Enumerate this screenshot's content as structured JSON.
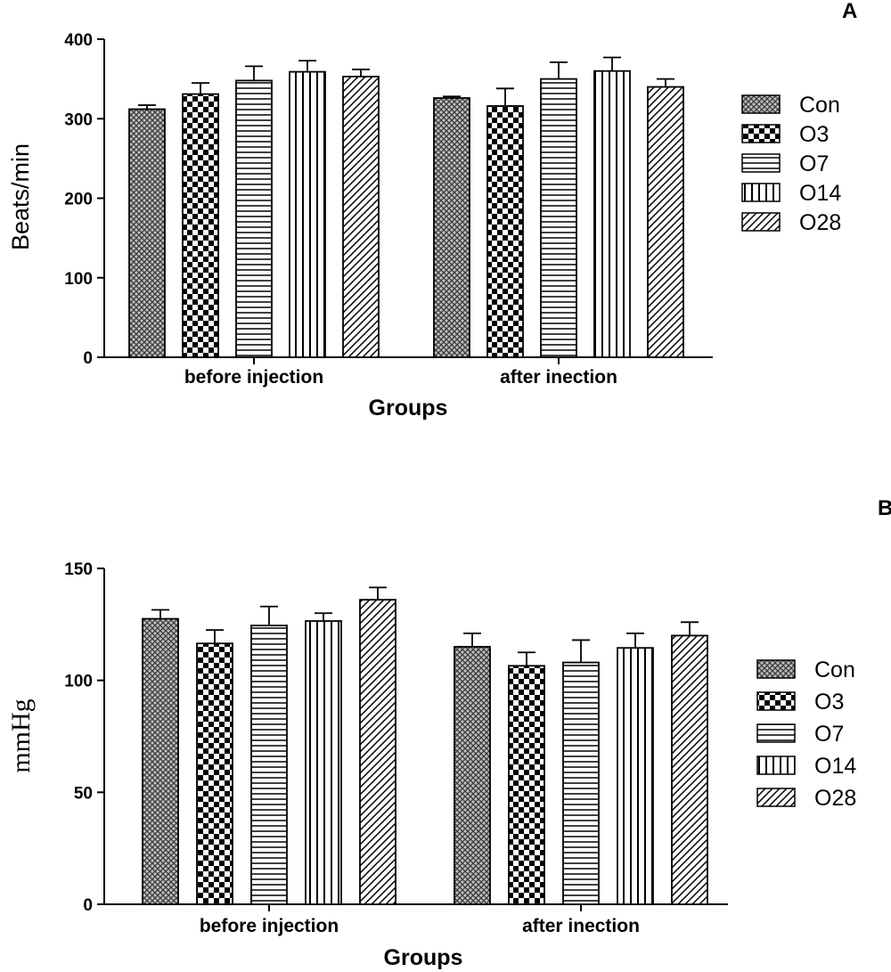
{
  "chart_data": [
    {
      "panel": "A",
      "type": "bar",
      "xlabel": "Groups",
      "ylabel": "Beats/min",
      "ylim": [
        0,
        400
      ],
      "yticks": [
        0,
        100,
        200,
        300,
        400
      ],
      "categories": [
        "before injection",
        "after inection"
      ],
      "legend_position": "right",
      "series": [
        {
          "name": "Con",
          "pattern": "crosshatch",
          "values": [
            312,
            326
          ],
          "errors": [
            5,
            2
          ]
        },
        {
          "name": "O3",
          "pattern": "checker",
          "values": [
            331,
            316
          ],
          "errors": [
            14,
            22
          ]
        },
        {
          "name": "O7",
          "pattern": "horizontal",
          "values": [
            348,
            350
          ],
          "errors": [
            18,
            21
          ]
        },
        {
          "name": "O14",
          "pattern": "vertical",
          "values": [
            359,
            360
          ],
          "errors": [
            14,
            17
          ]
        },
        {
          "name": "O28",
          "pattern": "diagonal",
          "values": [
            353,
            340
          ],
          "errors": [
            9,
            10
          ]
        }
      ]
    },
    {
      "panel": "B",
      "type": "bar",
      "xlabel": "Groups",
      "ylabel": "mmHg",
      "ylim": [
        0,
        150
      ],
      "yticks": [
        0,
        50,
        100,
        150
      ],
      "categories": [
        "before injection",
        "after inection"
      ],
      "legend_position": "right",
      "series": [
        {
          "name": "Con",
          "pattern": "crosshatch",
          "values": [
            127.5,
            115
          ],
          "errors": [
            4,
            6
          ]
        },
        {
          "name": "O3",
          "pattern": "checker",
          "values": [
            116.5,
            106.5
          ],
          "errors": [
            6,
            6
          ]
        },
        {
          "name": "O7",
          "pattern": "horizontal",
          "values": [
            124.5,
            108
          ],
          "errors": [
            8.5,
            10
          ]
        },
        {
          "name": "O14",
          "pattern": "vertical",
          "values": [
            126.5,
            114.5
          ],
          "errors": [
            3.5,
            6.5
          ]
        },
        {
          "name": "O28",
          "pattern": "diagonal",
          "values": [
            136,
            120
          ],
          "errors": [
            5.5,
            6
          ]
        }
      ]
    }
  ]
}
